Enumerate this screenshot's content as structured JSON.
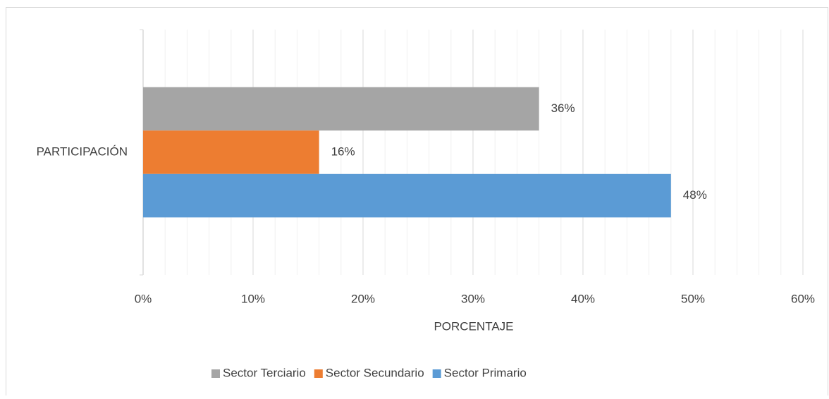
{
  "chart_data": {
    "type": "barh",
    "categories": [
      "PARTICIPACIÓN"
    ],
    "series": [
      {
        "name": "Sector Terciario",
        "color": "#a5a5a5",
        "values": [
          36
        ],
        "value_labels": [
          "36%"
        ]
      },
      {
        "name": "Sector Secundario",
        "color": "#ed7d31",
        "values": [
          16
        ],
        "value_labels": [
          "16%"
        ]
      },
      {
        "name": "Sector Primario",
        "color": "#5b9bd5",
        "values": [
          48
        ],
        "value_labels": [
          "48%"
        ]
      }
    ],
    "xlabel": "PORCENTAJE",
    "xlim": [
      0,
      60
    ],
    "xticks": [
      {
        "value": 0,
        "label": "0%"
      },
      {
        "value": 10,
        "label": "10%"
      },
      {
        "value": 20,
        "label": "20%"
      },
      {
        "value": 30,
        "label": "30%"
      },
      {
        "value": 40,
        "label": "40%"
      },
      {
        "value": 50,
        "label": "50%"
      },
      {
        "value": 60,
        "label": "60%"
      }
    ],
    "minor_xticks": [
      2,
      4,
      6,
      8,
      12,
      14,
      16,
      18,
      22,
      24,
      26,
      28,
      32,
      34,
      36,
      38,
      42,
      44,
      46,
      48,
      52,
      54,
      56,
      58
    ],
    "grid": true,
    "legend": "bottom"
  }
}
